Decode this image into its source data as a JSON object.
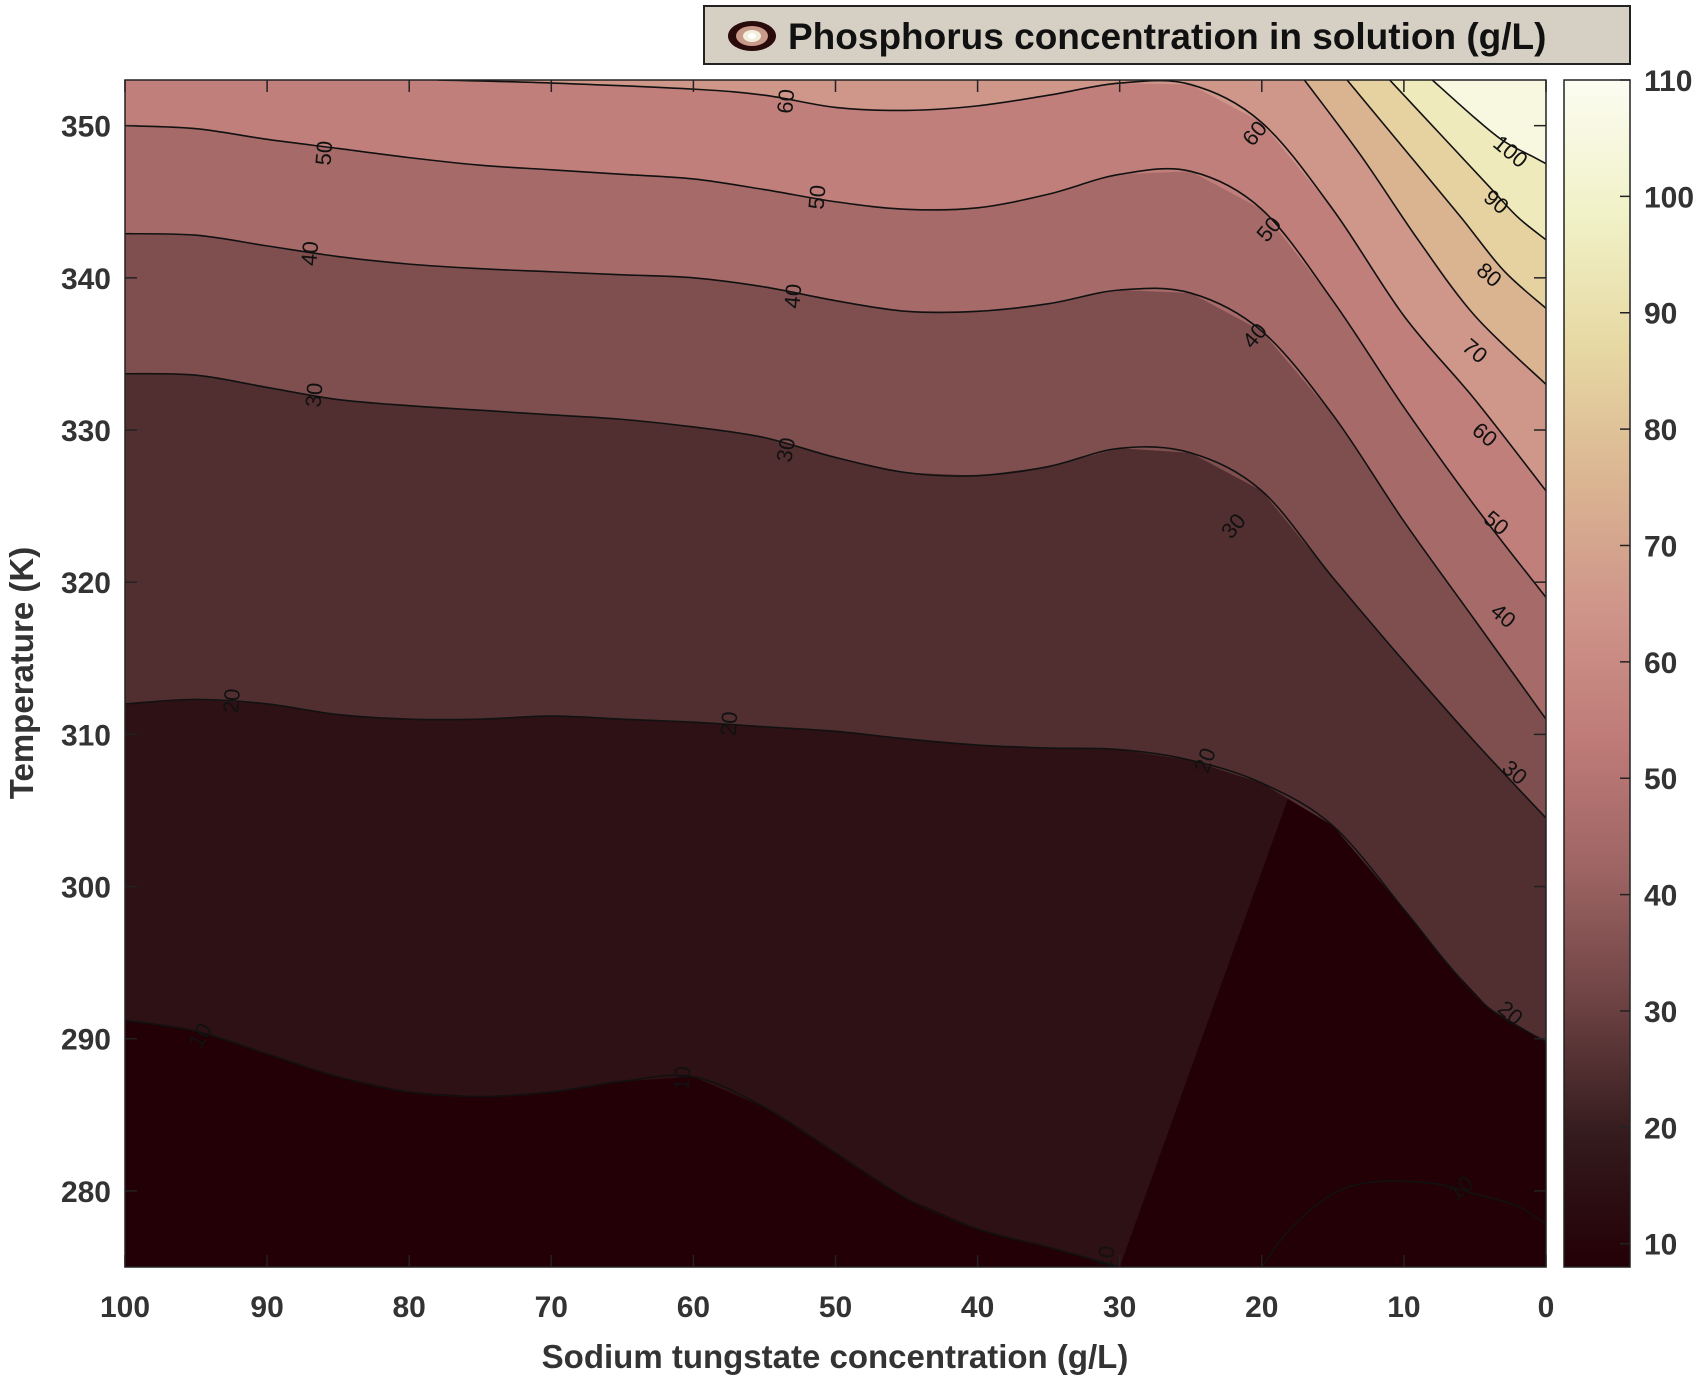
{
  "chart_data": {
    "type": "contour",
    "legend": {
      "label": "Phosphorus concentration in solution (g/L)",
      "placement": "top-right",
      "icon": "contour-rings-icon"
    },
    "xlabel": "Sodium tungstate concentration (g/L)",
    "ylabel": "Temperature (K)",
    "xlim": [
      100,
      0
    ],
    "ylim": [
      275,
      353
    ],
    "x_ticks": [
      100,
      90,
      80,
      70,
      60,
      50,
      40,
      30,
      20,
      10,
      0
    ],
    "y_ticks": [
      280,
      290,
      300,
      310,
      320,
      330,
      340,
      350
    ],
    "colorbar": {
      "range": [
        8,
        110
      ],
      "ticks": [
        10,
        20,
        30,
        40,
        50,
        60,
        70,
        80,
        90,
        100,
        110
      ],
      "colors": [
        "#230006",
        "#341b1d",
        "#6d4243",
        "#9d6463",
        "#bf7b78",
        "#cf958a",
        "#dbb692",
        "#e7d9a4",
        "#f1f2c8",
        "#fcfcf2"
      ]
    },
    "contours": [
      {
        "level": 10,
        "points": [
          [
            100,
            291.2
          ],
          [
            95,
            290.5
          ],
          [
            90,
            289
          ],
          [
            85,
            287.5
          ],
          [
            80,
            286.5
          ],
          [
            75,
            286.2
          ],
          [
            70,
            286.5
          ],
          [
            65,
            287.2
          ],
          [
            60,
            287.5
          ],
          [
            55,
            285.5
          ],
          [
            50,
            282.5
          ],
          [
            45,
            279.5
          ],
          [
            40,
            277.5
          ],
          [
            35,
            276.3
          ],
          [
            30,
            275
          ]
        ]
      },
      {
        "level": 10,
        "points": [
          [
            20,
            275
          ],
          [
            18,
            277.5
          ],
          [
            15,
            279.8
          ],
          [
            12,
            280.6
          ],
          [
            8,
            280.5
          ],
          [
            5,
            279.8
          ],
          [
            2,
            279
          ],
          [
            0,
            277.8
          ]
        ]
      },
      {
        "level": 20,
        "points": [
          [
            100,
            312
          ],
          [
            95,
            312.3
          ],
          [
            90,
            312
          ],
          [
            85,
            311.3
          ],
          [
            80,
            311
          ],
          [
            75,
            311
          ],
          [
            70,
            311.2
          ],
          [
            65,
            311
          ],
          [
            60,
            310.8
          ],
          [
            55,
            310.5
          ],
          [
            50,
            310.2
          ],
          [
            45,
            309.7
          ],
          [
            40,
            309.3
          ],
          [
            35,
            309.1
          ],
          [
            30,
            309
          ],
          [
            25,
            308.3
          ],
          [
            20,
            306.8
          ],
          [
            15,
            304
          ],
          [
            10,
            298.5
          ],
          [
            7,
            295
          ],
          [
            4,
            292
          ],
          [
            0,
            289.8
          ]
        ]
      },
      {
        "level": 30,
        "points": [
          [
            100,
            333.7
          ],
          [
            95,
            333.6
          ],
          [
            90,
            332.8
          ],
          [
            85,
            332
          ],
          [
            80,
            331.6
          ],
          [
            75,
            331.3
          ],
          [
            70,
            331
          ],
          [
            65,
            330.7
          ],
          [
            60,
            330.2
          ],
          [
            55,
            329.5
          ],
          [
            50,
            328.2
          ],
          [
            45,
            327.2
          ],
          [
            40,
            327
          ],
          [
            35,
            327.6
          ],
          [
            30,
            328.8
          ],
          [
            25,
            328.5
          ],
          [
            20,
            326
          ],
          [
            15,
            320.3
          ],
          [
            10,
            314.8
          ],
          [
            5,
            309.5
          ],
          [
            0,
            304.5
          ]
        ]
      },
      {
        "level": 40,
        "points": [
          [
            100,
            342.9
          ],
          [
            95,
            342.8
          ],
          [
            90,
            342.1
          ],
          [
            85,
            341.4
          ],
          [
            80,
            340.9
          ],
          [
            75,
            340.6
          ],
          [
            70,
            340.4
          ],
          [
            65,
            340.2
          ],
          [
            60,
            340
          ],
          [
            55,
            339.4
          ],
          [
            50,
            338.5
          ],
          [
            45,
            337.8
          ],
          [
            40,
            337.8
          ],
          [
            35,
            338.3
          ],
          [
            30,
            339.2
          ],
          [
            25,
            339
          ],
          [
            20,
            336.5
          ],
          [
            15,
            331
          ],
          [
            10,
            324
          ],
          [
            5,
            317.5
          ],
          [
            0,
            311
          ]
        ]
      },
      {
        "level": 50,
        "points": [
          [
            100,
            350
          ],
          [
            95,
            349.8
          ],
          [
            90,
            349.1
          ],
          [
            85,
            348.5
          ],
          [
            80,
            347.9
          ],
          [
            75,
            347.4
          ],
          [
            70,
            347.1
          ],
          [
            65,
            346.8
          ],
          [
            60,
            346.5
          ],
          [
            55,
            345.8
          ],
          [
            50,
            345
          ],
          [
            45,
            344.5
          ],
          [
            40,
            344.6
          ],
          [
            35,
            345.5
          ],
          [
            30,
            346.8
          ],
          [
            25,
            347
          ],
          [
            20,
            344.5
          ],
          [
            15,
            338.5
          ],
          [
            10,
            331.5
          ],
          [
            5,
            325
          ],
          [
            0,
            319
          ]
        ]
      },
      {
        "level": 60,
        "points": [
          [
            78,
            353
          ],
          [
            70,
            352.8
          ],
          [
            60,
            352.4
          ],
          [
            55,
            352
          ],
          [
            50,
            351.2
          ],
          [
            45,
            351
          ],
          [
            40,
            351.3
          ],
          [
            35,
            352
          ],
          [
            30,
            352.8
          ],
          [
            25,
            352.7
          ],
          [
            20,
            350.2
          ],
          [
            15,
            344.5
          ],
          [
            10,
            337.5
          ],
          [
            5,
            332
          ],
          [
            0,
            326
          ]
        ]
      },
      {
        "level": 70,
        "points": [
          [
            17,
            353
          ],
          [
            13,
            348
          ],
          [
            9,
            342.5
          ],
          [
            5,
            337.5
          ],
          [
            0,
            333
          ]
        ]
      },
      {
        "level": 80,
        "points": [
          [
            14,
            353
          ],
          [
            10,
            348.5
          ],
          [
            6,
            344
          ],
          [
            3,
            340.5
          ],
          [
            0,
            338
          ]
        ]
      },
      {
        "level": 90,
        "points": [
          [
            11,
            353
          ],
          [
            7,
            349
          ],
          [
            4,
            346
          ],
          [
            2,
            344
          ],
          [
            0,
            342.5
          ]
        ]
      },
      {
        "level": 100,
        "points": [
          [
            8,
            353
          ],
          [
            5,
            350.5
          ],
          [
            3,
            349
          ],
          [
            1,
            348
          ],
          [
            0,
            347.5
          ]
        ]
      }
    ],
    "contour_labels": [
      {
        "text": "60",
        "x": 53.5,
        "y": 351.6,
        "angle": -85
      },
      {
        "text": "60",
        "x": 20.5,
        "y": 349.5,
        "angle": -50
      },
      {
        "text": "100",
        "x": 2.5,
        "y": 348.3,
        "angle": 40
      },
      {
        "text": "50",
        "x": 86,
        "y": 348.2,
        "angle": -85
      },
      {
        "text": "50",
        "x": 51.3,
        "y": 345.3,
        "angle": -85
      },
      {
        "text": "50",
        "x": 19.5,
        "y": 343.2,
        "angle": -50
      },
      {
        "text": "90",
        "x": 3.5,
        "y": 345,
        "angle": 40
      },
      {
        "text": "40",
        "x": 87,
        "y": 341.6,
        "angle": -85
      },
      {
        "text": "80",
        "x": 4,
        "y": 340.2,
        "angle": 40
      },
      {
        "text": "40",
        "x": 53,
        "y": 338.8,
        "angle": -85
      },
      {
        "text": "40",
        "x": 20.5,
        "y": 336.2,
        "angle": -50
      },
      {
        "text": "70",
        "x": 5,
        "y": 335.2,
        "angle": 40
      },
      {
        "text": "30",
        "x": 86.7,
        "y": 332.3,
        "angle": -85
      },
      {
        "text": "60",
        "x": 4.3,
        "y": 329.7,
        "angle": 40
      },
      {
        "text": "30",
        "x": 53.5,
        "y": 328.7,
        "angle": -80
      },
      {
        "text": "30",
        "x": 22,
        "y": 323.7,
        "angle": -50
      },
      {
        "text": "50",
        "x": 3.5,
        "y": 323.9,
        "angle": 40
      },
      {
        "text": "40",
        "x": 3,
        "y": 317.8,
        "angle": 40
      },
      {
        "text": "20",
        "x": 92.5,
        "y": 312.2,
        "angle": -85
      },
      {
        "text": "20",
        "x": 57.5,
        "y": 310.7,
        "angle": -85
      },
      {
        "text": "20",
        "x": 24,
        "y": 308.3,
        "angle": -70
      },
      {
        "text": "30",
        "x": 2.2,
        "y": 307.5,
        "angle": 40
      },
      {
        "text": "20",
        "x": 2.5,
        "y": 291.7,
        "angle": 40
      },
      {
        "text": "10",
        "x": 94.7,
        "y": 290.2,
        "angle": -60
      },
      {
        "text": "10",
        "x": 60.8,
        "y": 287.4,
        "angle": -85
      },
      {
        "text": "10",
        "x": 6,
        "y": 280.2,
        "angle": -40
      },
      {
        "text": "10",
        "x": 31,
        "y": 275.6,
        "angle": -80
      }
    ]
  }
}
